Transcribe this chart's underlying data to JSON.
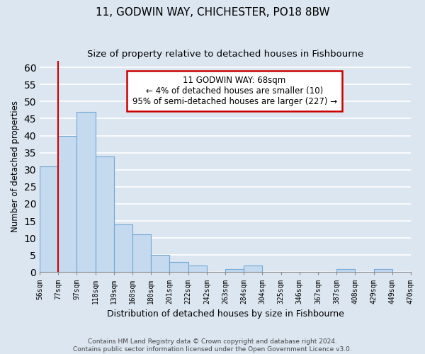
{
  "title": "11, GODWIN WAY, CHICHESTER, PO18 8BW",
  "subtitle": "Size of property relative to detached houses in Fishbourne",
  "xlabel": "Distribution of detached houses by size in Fishbourne",
  "ylabel": "Number of detached properties",
  "bin_labels": [
    "56sqm",
    "77sqm",
    "97sqm",
    "118sqm",
    "139sqm",
    "160sqm",
    "180sqm",
    "201sqm",
    "222sqm",
    "242sqm",
    "263sqm",
    "284sqm",
    "304sqm",
    "325sqm",
    "346sqm",
    "367sqm",
    "387sqm",
    "408sqm",
    "429sqm",
    "449sqm",
    "470sqm"
  ],
  "bar_heights": [
    31,
    40,
    47,
    34,
    14,
    11,
    5,
    3,
    2,
    0,
    1,
    2,
    0,
    0,
    0,
    0,
    1,
    0,
    1,
    0
  ],
  "bar_color": "#c5d9ef",
  "bar_edge_color": "#6fa8d6",
  "annotation_line1": "11 GODWIN WAY: 68sqm",
  "annotation_line2": "← 4% of detached houses are smaller (10)",
  "annotation_line3": "95% of semi-detached houses are larger (227) →",
  "annotation_box_color": "#ffffff",
  "annotation_box_edge_color": "#cc0000",
  "marker_line_color": "#cc0000",
  "ylim": [
    0,
    62
  ],
  "yticks": [
    0,
    5,
    10,
    15,
    20,
    25,
    30,
    35,
    40,
    45,
    50,
    55,
    60
  ],
  "footer_line1": "Contains HM Land Registry data © Crown copyright and database right 2024.",
  "footer_line2": "Contains public sector information licensed under the Open Government Licence v3.0.",
  "bg_color": "#dce6f0",
  "plot_bg_color": "#dce6f0",
  "grid_color": "#ffffff",
  "title_fontsize": 11,
  "subtitle_fontsize": 9.5
}
